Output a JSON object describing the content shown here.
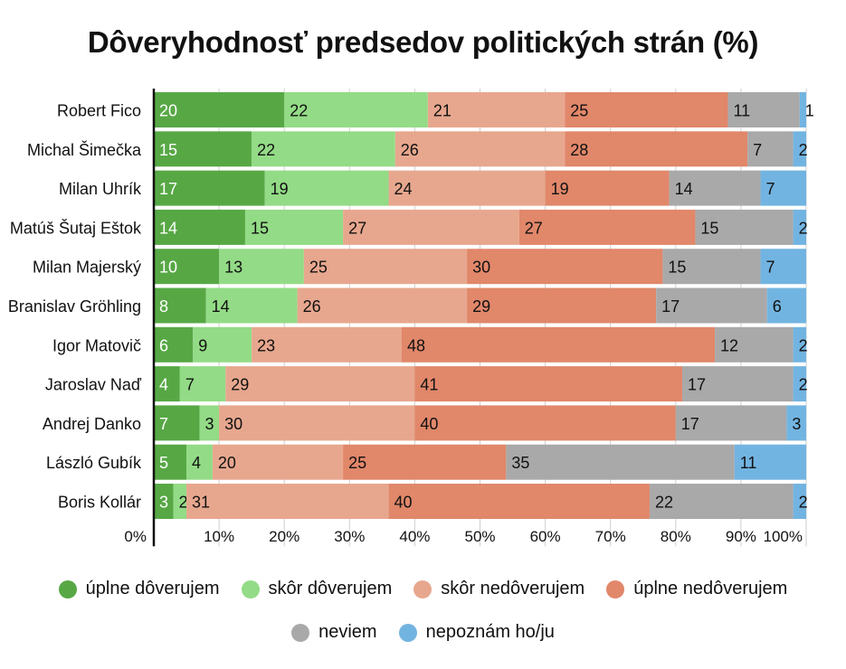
{
  "chart_data": {
    "type": "bar",
    "orientation": "horizontal-stacked",
    "title": "Dôveryhodnosť predsedov politických strán (%)",
    "categories": [
      "Robert Fico",
      "Michal Šimečka",
      "Milan Uhrík",
      "Matúš Šutaj Eštok",
      "Milan Majerský",
      "Branislav Gröhling",
      "Igor Matovič",
      "Jaroslav Naď",
      "Andrej Danko",
      "László Gubík",
      "Boris Kollár"
    ],
    "series": [
      {
        "name": "úplne dôverujem",
        "color": "#57a845",
        "values": [
          20,
          15,
          17,
          14,
          10,
          8,
          6,
          4,
          7,
          5,
          3
        ]
      },
      {
        "name": "skôr dôverujem",
        "color": "#93db86",
        "values": [
          22,
          22,
          19,
          15,
          13,
          14,
          9,
          7,
          3,
          4,
          2
        ]
      },
      {
        "name": "skôr nedôverujem",
        "color": "#e7a78e",
        "values": [
          21,
          26,
          24,
          27,
          25,
          26,
          23,
          29,
          30,
          20,
          31
        ]
      },
      {
        "name": "úplne nedôverujem",
        "color": "#e1876a",
        "values": [
          25,
          28,
          19,
          27,
          30,
          29,
          48,
          41,
          40,
          25,
          40
        ]
      },
      {
        "name": "neviem",
        "color": "#a9a9a9",
        "values": [
          11,
          7,
          14,
          15,
          15,
          17,
          12,
          17,
          17,
          35,
          22
        ]
      },
      {
        "name": "nepoznám ho/ju",
        "color": "#72b4e1",
        "values": [
          1,
          2,
          7,
          2,
          7,
          6,
          2,
          2,
          3,
          11,
          2
        ]
      }
    ],
    "x_ticks": [
      "0%",
      "10%",
      "20%",
      "30%",
      "40%",
      "50%",
      "60%",
      "70%",
      "80%",
      "90%",
      "100%"
    ],
    "xlim": [
      0,
      100
    ],
    "grid": true,
    "legend_position": "bottom"
  }
}
